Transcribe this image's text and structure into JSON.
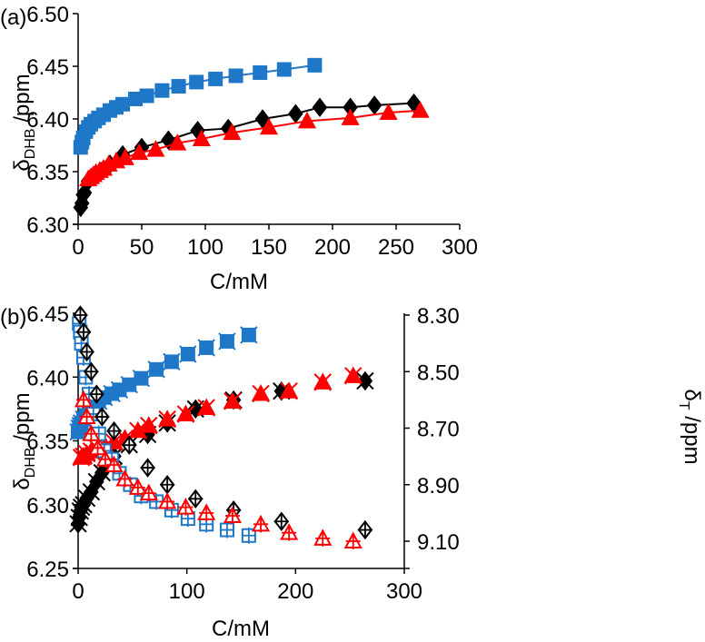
{
  "colors": {
    "blue": "#1f77c8",
    "black": "#000000",
    "red": "#ff0000"
  },
  "chart_data": [
    {
      "panel_label": "(a)",
      "type": "scatter",
      "xlabel": "C/mM",
      "ylabel_main": "δ",
      "ylabel_sub": "DHB",
      "ylabel_unit": " /ppm",
      "xlim": [
        0,
        300
      ],
      "ylim": [
        6.3,
        6.5
      ],
      "xticks": [
        "0",
        "50",
        "100",
        "150",
        "200",
        "250",
        "300"
      ],
      "yticks": [
        "6.30",
        "6.35",
        "6.40",
        "6.45",
        "6.50"
      ],
      "series": [
        {
          "name": "blue squares",
          "marker": "square",
          "color": "blue",
          "fill": true,
          "fit_line": true,
          "x": [
            2,
            3,
            4,
            6,
            8,
            10,
            13,
            16,
            20,
            25,
            30,
            35,
            45,
            54,
            66,
            79,
            93,
            108,
            124,
            143,
            162,
            186
          ],
          "y": [
            6.373,
            6.378,
            6.382,
            6.388,
            6.392,
            6.395,
            6.398,
            6.401,
            6.404,
            6.408,
            6.411,
            6.414,
            6.419,
            6.422,
            6.427,
            6.431,
            6.435,
            6.438,
            6.441,
            6.444,
            6.447,
            6.451
          ]
        },
        {
          "name": "black diamonds",
          "marker": "diamond",
          "color": "black",
          "fill": true,
          "fit_line": true,
          "x": [
            2,
            3,
            4,
            5,
            8,
            12,
            18,
            25,
            35,
            50,
            71,
            94,
            118,
            145,
            171,
            190,
            214,
            233,
            264
          ],
          "y": [
            6.316,
            6.32,
            6.328,
            6.33,
            6.341,
            6.345,
            6.35,
            6.357,
            6.366,
            6.373,
            6.38,
            6.389,
            6.391,
            6.4,
            6.405,
            6.411,
            6.411,
            6.413,
            6.415
          ]
        },
        {
          "name": "red triangles",
          "marker": "triangle",
          "color": "red",
          "fill": true,
          "fit_line": true,
          "x": [
            8,
            10,
            12,
            14,
            17,
            20,
            24,
            30,
            37,
            48,
            61,
            78,
            97,
            121,
            150,
            180,
            214,
            244,
            269
          ],
          "y": [
            6.343,
            6.345,
            6.347,
            6.349,
            6.351,
            6.353,
            6.357,
            6.36,
            6.363,
            6.368,
            6.371,
            6.377,
            6.381,
            6.387,
            6.392,
            6.398,
            6.401,
            6.406,
            6.408
          ]
        }
      ]
    },
    {
      "panel_label": "(b)",
      "type": "scatter",
      "xlabel": "C/mM",
      "ylabel_main": "δ",
      "ylabel_sub": "DHB",
      "ylabel_unit": " /ppm",
      "y2label_main": "δ",
      "y2label_sub": "T",
      "y2label_unit": " /ppm",
      "xlim": [
        0,
        300
      ],
      "ylim": [
        6.25,
        6.45
      ],
      "y2lim": [
        8.3,
        9.1
      ],
      "y2_inverted": true,
      "xticks": [
        "0",
        "100",
        "200",
        "300"
      ],
      "yticks": [
        "6.25",
        "6.30",
        "6.35",
        "6.40",
        "6.45"
      ],
      "y2ticks": [
        "8.30",
        "8.50",
        "8.70",
        "8.90",
        "9.10"
      ],
      "series": [
        {
          "name": "blue filled squares (left)",
          "axis": "left",
          "marker": "square",
          "color": "blue",
          "fill": true,
          "cross": true,
          "x": [
            0,
            1,
            2,
            3,
            5,
            7,
            10,
            14,
            19,
            24,
            31,
            38,
            47,
            58,
            72,
            86,
            101,
            118,
            137,
            157
          ],
          "y": [
            6.357,
            6.36,
            6.362,
            6.364,
            6.367,
            6.37,
            6.374,
            6.377,
            6.381,
            6.384,
            6.387,
            6.39,
            6.394,
            6.399,
            6.406,
            6.412,
            6.418,
            6.423,
            6.428,
            6.433
          ]
        },
        {
          "name": "black filled diamonds (left)",
          "axis": "left",
          "marker": "diamond",
          "color": "black",
          "fill": true,
          "cross": true,
          "x": [
            0,
            1,
            2,
            3,
            5,
            8,
            12,
            17,
            22,
            33,
            47,
            64,
            82,
            108,
            143,
            187,
            264
          ],
          "y": [
            6.285,
            6.29,
            6.295,
            6.298,
            6.3,
            6.305,
            6.31,
            6.318,
            6.325,
            6.338,
            6.347,
            6.355,
            6.364,
            6.375,
            6.382,
            6.389,
            6.397
          ]
        },
        {
          "name": "red filled triangles (left)",
          "axis": "left",
          "marker": "triangle",
          "color": "red",
          "fill": true,
          "cross": true,
          "x": [
            3,
            5,
            8,
            12,
            18,
            25,
            33,
            43,
            55,
            65,
            82,
            99,
            118,
            142,
            168,
            194,
            225,
            253
          ],
          "y": [
            6.337,
            6.338,
            6.34,
            6.342,
            6.344,
            6.346,
            6.349,
            6.352,
            6.358,
            6.362,
            6.367,
            6.371,
            6.376,
            6.381,
            6.387,
            6.389,
            6.396,
            6.401
          ]
        },
        {
          "name": "blue open squares (right)",
          "axis": "right",
          "marker": "square",
          "color": "blue",
          "fill": false,
          "plus": true,
          "x": [
            1,
            2,
            3,
            5,
            7,
            10,
            14,
            19,
            24,
            31,
            38,
            48,
            58,
            72,
            86,
            101,
            118,
            137,
            157
          ],
          "y": [
            8.33,
            8.36,
            8.4,
            8.45,
            8.52,
            8.58,
            8.65,
            8.72,
            8.78,
            8.81,
            8.86,
            8.9,
            8.94,
            8.96,
            8.99,
            9.02,
            9.04,
            9.06,
            9.08
          ]
        },
        {
          "name": "black open diamonds (right)",
          "axis": "right",
          "marker": "diamond",
          "color": "black",
          "fill": false,
          "plus": true,
          "x": [
            2,
            5,
            8,
            12,
            17,
            22,
            33,
            47,
            64,
            82,
            108,
            143,
            187,
            264
          ],
          "y": [
            8.3,
            8.36,
            8.43,
            8.5,
            8.58,
            8.66,
            8.71,
            8.76,
            8.84,
            8.9,
            8.95,
            8.99,
            9.03,
            9.06
          ]
        },
        {
          "name": "red open triangles (right)",
          "axis": "right",
          "marker": "triangle",
          "color": "red",
          "fill": false,
          "plus": true,
          "x": [
            5,
            8,
            12,
            18,
            25,
            33,
            43,
            55,
            65,
            82,
            99,
            118,
            142,
            168,
            194,
            225,
            253
          ],
          "y": [
            8.6,
            8.66,
            8.72,
            8.77,
            8.81,
            8.83,
            8.88,
            8.91,
            8.93,
            8.96,
            8.98,
            9.0,
            9.01,
            9.04,
            9.07,
            9.09,
            9.1
          ]
        }
      ]
    }
  ]
}
